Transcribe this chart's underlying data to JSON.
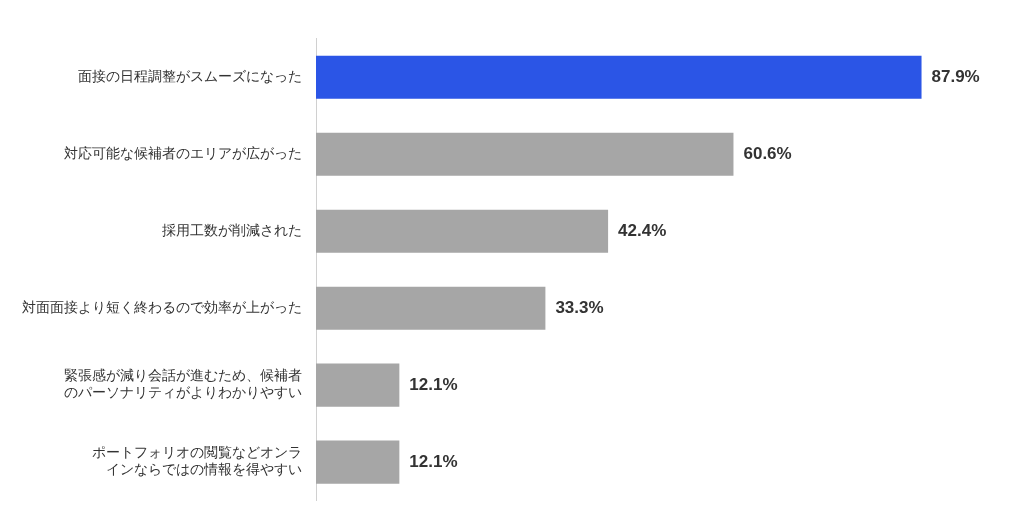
{
  "chart_data": {
    "type": "bar",
    "orientation": "horizontal",
    "categories": [
      "面接の日程調整がスムーズになった",
      "対応可能な候補者のエリアが広がった",
      "採用工数が削減された",
      "対面面接より短く終わるので効率が上がった",
      "緊張感が減り会話が進むため、候補者のパーソナリティがよりわかりやすい",
      "ポートフォリオの閲覧などオンラインならではの情報を得やすい"
    ],
    "values": [
      87.9,
      60.6,
      42.4,
      33.3,
      12.1,
      12.1
    ],
    "colors": [
      "#2b55e6",
      "#a6a6a6",
      "#a6a6a6",
      "#a6a6a6",
      "#a6a6a6",
      "#a6a6a6"
    ],
    "value_labels": [
      "87.9%",
      "60.6%",
      "42.4%",
      "33.3%",
      "12.1%",
      "12.1%"
    ],
    "grid": false,
    "legend": false
  }
}
